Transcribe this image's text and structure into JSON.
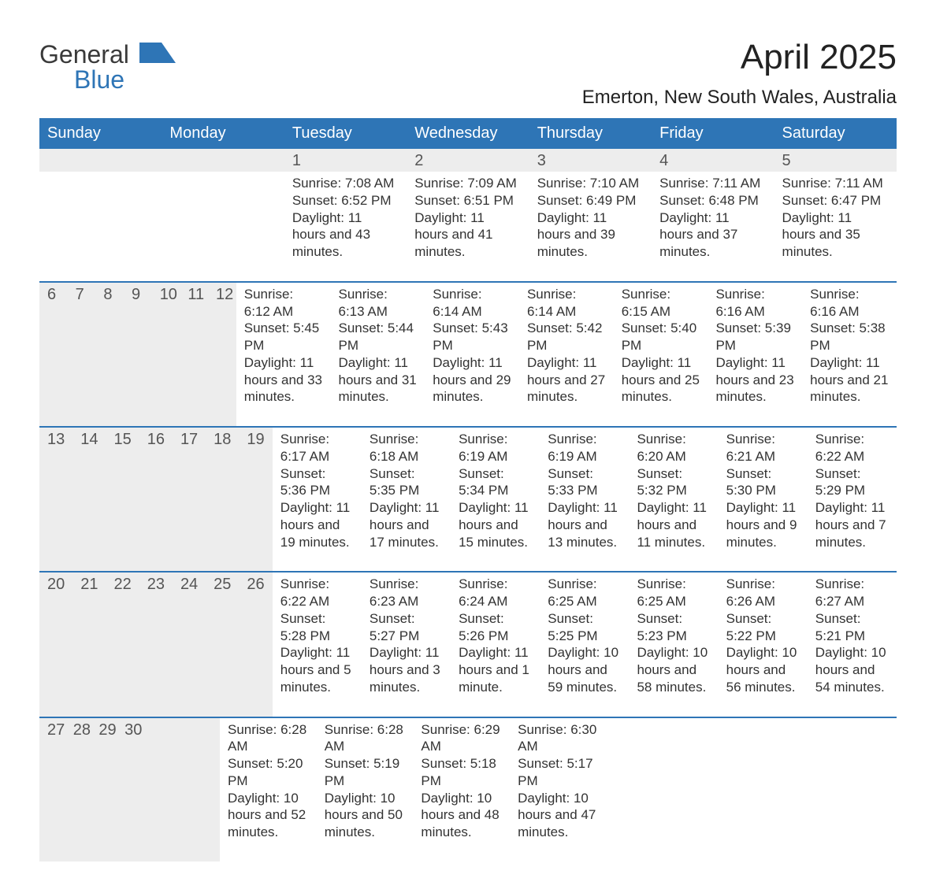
{
  "logo": {
    "word1": "General",
    "word2": "Blue"
  },
  "title": "April 2025",
  "subtitle": "Emerton, New South Wales, Australia",
  "colors": {
    "header_bg": "#2e75b6",
    "header_fg": "#ffffff",
    "daynum_bg": "#ededed",
    "week_border": "#2e75b6",
    "text": "#333333",
    "title_color": "#222222",
    "logo_gray": "#3a3a3a",
    "logo_blue": "#2e75b6",
    "page_bg": "#ffffff"
  },
  "typography": {
    "title_fontsize": 44,
    "subtitle_fontsize": 24,
    "weekday_fontsize": 20,
    "daynum_fontsize": 20,
    "body_fontsize": 17,
    "logo_fontsize": 32
  },
  "layout": {
    "columns": 7,
    "rows": 5
  },
  "weekdays": [
    "Sunday",
    "Monday",
    "Tuesday",
    "Wednesday",
    "Thursday",
    "Friday",
    "Saturday"
  ],
  "weeks": [
    [
      {
        "n": "",
        "sunrise": "",
        "sunset": "",
        "daylight": ""
      },
      {
        "n": "",
        "sunrise": "",
        "sunset": "",
        "daylight": ""
      },
      {
        "n": "1",
        "sunrise": "Sunrise: 7:08 AM",
        "sunset": "Sunset: 6:52 PM",
        "daylight": "Daylight: 11 hours and 43 minutes."
      },
      {
        "n": "2",
        "sunrise": "Sunrise: 7:09 AM",
        "sunset": "Sunset: 6:51 PM",
        "daylight": "Daylight: 11 hours and 41 minutes."
      },
      {
        "n": "3",
        "sunrise": "Sunrise: 7:10 AM",
        "sunset": "Sunset: 6:49 PM",
        "daylight": "Daylight: 11 hours and 39 minutes."
      },
      {
        "n": "4",
        "sunrise": "Sunrise: 7:11 AM",
        "sunset": "Sunset: 6:48 PM",
        "daylight": "Daylight: 11 hours and 37 minutes."
      },
      {
        "n": "5",
        "sunrise": "Sunrise: 7:11 AM",
        "sunset": "Sunset: 6:47 PM",
        "daylight": "Daylight: 11 hours and 35 minutes."
      }
    ],
    [
      {
        "n": "6",
        "sunrise": "Sunrise: 6:12 AM",
        "sunset": "Sunset: 5:45 PM",
        "daylight": "Daylight: 11 hours and 33 minutes."
      },
      {
        "n": "7",
        "sunrise": "Sunrise: 6:13 AM",
        "sunset": "Sunset: 5:44 PM",
        "daylight": "Daylight: 11 hours and 31 minutes."
      },
      {
        "n": "8",
        "sunrise": "Sunrise: 6:14 AM",
        "sunset": "Sunset: 5:43 PM",
        "daylight": "Daylight: 11 hours and 29 minutes."
      },
      {
        "n": "9",
        "sunrise": "Sunrise: 6:14 AM",
        "sunset": "Sunset: 5:42 PM",
        "daylight": "Daylight: 11 hours and 27 minutes."
      },
      {
        "n": "10",
        "sunrise": "Sunrise: 6:15 AM",
        "sunset": "Sunset: 5:40 PM",
        "daylight": "Daylight: 11 hours and 25 minutes."
      },
      {
        "n": "11",
        "sunrise": "Sunrise: 6:16 AM",
        "sunset": "Sunset: 5:39 PM",
        "daylight": "Daylight: 11 hours and 23 minutes."
      },
      {
        "n": "12",
        "sunrise": "Sunrise: 6:16 AM",
        "sunset": "Sunset: 5:38 PM",
        "daylight": "Daylight: 11 hours and 21 minutes."
      }
    ],
    [
      {
        "n": "13",
        "sunrise": "Sunrise: 6:17 AM",
        "sunset": "Sunset: 5:36 PM",
        "daylight": "Daylight: 11 hours and 19 minutes."
      },
      {
        "n": "14",
        "sunrise": "Sunrise: 6:18 AM",
        "sunset": "Sunset: 5:35 PM",
        "daylight": "Daylight: 11 hours and 17 minutes."
      },
      {
        "n": "15",
        "sunrise": "Sunrise: 6:19 AM",
        "sunset": "Sunset: 5:34 PM",
        "daylight": "Daylight: 11 hours and 15 minutes."
      },
      {
        "n": "16",
        "sunrise": "Sunrise: 6:19 AM",
        "sunset": "Sunset: 5:33 PM",
        "daylight": "Daylight: 11 hours and 13 minutes."
      },
      {
        "n": "17",
        "sunrise": "Sunrise: 6:20 AM",
        "sunset": "Sunset: 5:32 PM",
        "daylight": "Daylight: 11 hours and 11 minutes."
      },
      {
        "n": "18",
        "sunrise": "Sunrise: 6:21 AM",
        "sunset": "Sunset: 5:30 PM",
        "daylight": "Daylight: 11 hours and 9 minutes."
      },
      {
        "n": "19",
        "sunrise": "Sunrise: 6:22 AM",
        "sunset": "Sunset: 5:29 PM",
        "daylight": "Daylight: 11 hours and 7 minutes."
      }
    ],
    [
      {
        "n": "20",
        "sunrise": "Sunrise: 6:22 AM",
        "sunset": "Sunset: 5:28 PM",
        "daylight": "Daylight: 11 hours and 5 minutes."
      },
      {
        "n": "21",
        "sunrise": "Sunrise: 6:23 AM",
        "sunset": "Sunset: 5:27 PM",
        "daylight": "Daylight: 11 hours and 3 minutes."
      },
      {
        "n": "22",
        "sunrise": "Sunrise: 6:24 AM",
        "sunset": "Sunset: 5:26 PM",
        "daylight": "Daylight: 11 hours and 1 minute."
      },
      {
        "n": "23",
        "sunrise": "Sunrise: 6:25 AM",
        "sunset": "Sunset: 5:25 PM",
        "daylight": "Daylight: 10 hours and 59 minutes."
      },
      {
        "n": "24",
        "sunrise": "Sunrise: 6:25 AM",
        "sunset": "Sunset: 5:23 PM",
        "daylight": "Daylight: 10 hours and 58 minutes."
      },
      {
        "n": "25",
        "sunrise": "Sunrise: 6:26 AM",
        "sunset": "Sunset: 5:22 PM",
        "daylight": "Daylight: 10 hours and 56 minutes."
      },
      {
        "n": "26",
        "sunrise": "Sunrise: 6:27 AM",
        "sunset": "Sunset: 5:21 PM",
        "daylight": "Daylight: 10 hours and 54 minutes."
      }
    ],
    [
      {
        "n": "27",
        "sunrise": "Sunrise: 6:28 AM",
        "sunset": "Sunset: 5:20 PM",
        "daylight": "Daylight: 10 hours and 52 minutes."
      },
      {
        "n": "28",
        "sunrise": "Sunrise: 6:28 AM",
        "sunset": "Sunset: 5:19 PM",
        "daylight": "Daylight: 10 hours and 50 minutes."
      },
      {
        "n": "29",
        "sunrise": "Sunrise: 6:29 AM",
        "sunset": "Sunset: 5:18 PM",
        "daylight": "Daylight: 10 hours and 48 minutes."
      },
      {
        "n": "30",
        "sunrise": "Sunrise: 6:30 AM",
        "sunset": "Sunset: 5:17 PM",
        "daylight": "Daylight: 10 hours and 47 minutes."
      },
      {
        "n": "",
        "sunrise": "",
        "sunset": "",
        "daylight": ""
      },
      {
        "n": "",
        "sunrise": "",
        "sunset": "",
        "daylight": ""
      },
      {
        "n": "",
        "sunrise": "",
        "sunset": "",
        "daylight": ""
      }
    ]
  ]
}
